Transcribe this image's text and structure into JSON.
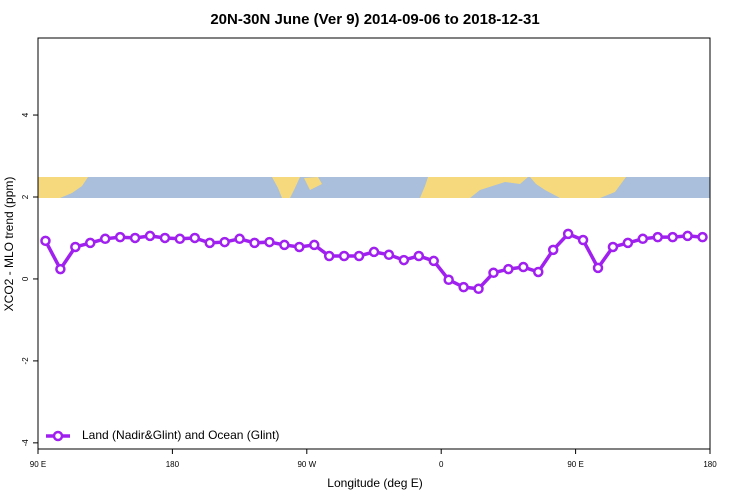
{
  "chart_data": {
    "type": "line",
    "title": "20N-30N June (Ver 9)   2014-09-06 to 2018-12-31",
    "x_label": "Longitude (deg E)",
    "y_label": "XCO2 - MLO trend (ppm)",
    "x": [
      95,
      105,
      115,
      125,
      135,
      145,
      155,
      165,
      175,
      185,
      195,
      205,
      215,
      225,
      235,
      245,
      255,
      265,
      275,
      285,
      295,
      305,
      315,
      325,
      335,
      345,
      355,
      365,
      375,
      385,
      395,
      405,
      415,
      425,
      435,
      445,
      455,
      465,
      475,
      485,
      495,
      505,
      515,
      525,
      535
    ],
    "series": [
      {
        "name": "Land (Nadir&Glint) and Ocean (Glint)",
        "color": "#a020f0",
        "values": [
          0.93,
          0.24,
          0.78,
          0.88,
          0.98,
          1.02,
          1.0,
          1.05,
          1.0,
          0.98,
          1.0,
          0.88,
          0.9,
          0.98,
          0.88,
          0.9,
          0.83,
          0.78,
          0.83,
          0.56,
          0.56,
          0.56,
          0.66,
          0.59,
          0.46,
          0.56,
          0.44,
          -0.02,
          -0.2,
          -0.24,
          0.15,
          0.24,
          0.29,
          0.17,
          0.71,
          1.1,
          0.95,
          0.27,
          0.78,
          0.88,
          0.98,
          1.02,
          1.02,
          1.05,
          1.02
        ]
      }
    ],
    "xlim": [
      90,
      540
    ],
    "xticks": [
      {
        "value": 90,
        "label": "90 E"
      },
      180,
      {
        "value": 270,
        "label": "90 W"
      },
      {
        "value": 360,
        "label": "0"
      },
      {
        "value": 450,
        "label": "90 E"
      },
      {
        "value": 540,
        "label": "180"
      }
    ],
    "ylim": [
      -4.15,
      5.88
    ],
    "yticks": [
      -4,
      -2,
      0,
      2,
      4
    ],
    "legend": "bottomleft"
  }
}
